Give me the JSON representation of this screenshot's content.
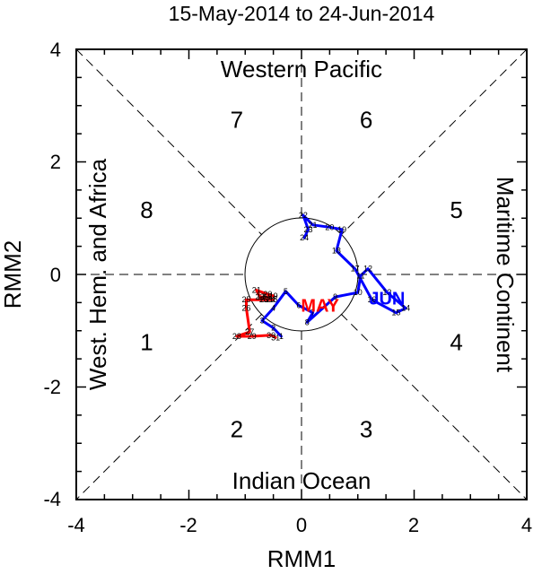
{
  "chart_data": {
    "type": "line",
    "title": "15-May-2014 to 24-Jun-2014",
    "xlabel": "RMM1",
    "ylabel": "RMM2",
    "xlim": [
      -4,
      4
    ],
    "ylim": [
      -4,
      4
    ],
    "xticks": [
      "-4",
      "-2",
      "0",
      "2",
      "4"
    ],
    "yticks": [
      "-4",
      "-2",
      "0",
      "2",
      "4"
    ],
    "regions": {
      "top": "Western Pacific",
      "bottom": "Indian Ocean",
      "left": "West. Hem. and Africa",
      "right": "Maritime Continent"
    },
    "phases": [
      {
        "label": "1",
        "x": -2.75,
        "y": -1.2
      },
      {
        "label": "2",
        "x": -1.15,
        "y": -2.75
      },
      {
        "label": "3",
        "x": 1.15,
        "y": -2.75
      },
      {
        "label": "4",
        "x": 2.75,
        "y": -1.2
      },
      {
        "label": "5",
        "x": 2.75,
        "y": 1.15
      },
      {
        "label": "6",
        "x": 1.15,
        "y": 2.75
      },
      {
        "label": "7",
        "x": -1.15,
        "y": 2.75
      },
      {
        "label": "8",
        "x": -2.75,
        "y": 1.15
      }
    ],
    "unit_circle_radius": 1,
    "series": [
      {
        "name": "MAY",
        "color": "#ff0000",
        "points": [
          {
            "day": "15",
            "x": -0.5,
            "y": -0.45
          },
          {
            "day": "16",
            "x": -0.68,
            "y": -0.45
          },
          {
            "day": "17",
            "x": -0.72,
            "y": -0.4
          },
          {
            "day": "18",
            "x": -0.6,
            "y": -0.4
          },
          {
            "day": "19",
            "x": -0.5,
            "y": -0.38
          },
          {
            "day": "20",
            "x": -0.6,
            "y": -0.35
          },
          {
            "day": "21",
            "x": -0.8,
            "y": -0.28
          },
          {
            "day": "22",
            "x": -0.74,
            "y": -0.4
          },
          {
            "day": "23",
            "x": -0.66,
            "y": -0.45
          },
          {
            "day": "24",
            "x": -0.55,
            "y": -0.45
          },
          {
            "day": "25",
            "x": -0.98,
            "y": -0.45
          },
          {
            "day": "26",
            "x": -0.98,
            "y": -0.6
          },
          {
            "day": "27",
            "x": -0.92,
            "y": -1.02
          },
          {
            "day": "28",
            "x": -1.15,
            "y": -1.1
          },
          {
            "day": "29",
            "x": -0.88,
            "y": -1.1
          },
          {
            "day": "30",
            "x": -0.54,
            "y": -1.08
          },
          {
            "day": "31",
            "x": -0.46,
            "y": -1.12
          }
        ]
      },
      {
        "name": "JUN",
        "color": "#0000ff",
        "points": [
          {
            "day": "1",
            "x": -0.36,
            "y": -1.1
          },
          {
            "day": "2",
            "x": -0.5,
            "y": -0.95
          },
          {
            "day": "3",
            "x": -0.7,
            "y": -0.82
          },
          {
            "day": "4",
            "x": -0.5,
            "y": -0.6
          },
          {
            "day": "5",
            "x": -0.28,
            "y": -0.3
          },
          {
            "day": "6",
            "x": -0.05,
            "y": -0.55
          },
          {
            "day": "7",
            "x": 0.2,
            "y": -0.68
          },
          {
            "day": "8",
            "x": 0.1,
            "y": -0.85
          },
          {
            "day": "9",
            "x": 0.6,
            "y": -0.4
          },
          {
            "day": "10",
            "x": 1.0,
            "y": -0.32
          },
          {
            "day": "11",
            "x": 1.05,
            "y": -0.02
          },
          {
            "day": "12",
            "x": 1.18,
            "y": 0.1
          },
          {
            "day": "13",
            "x": 1.52,
            "y": -0.32
          },
          {
            "day": "14",
            "x": 1.85,
            "y": -0.6
          },
          {
            "day": "15",
            "x": 1.68,
            "y": -0.68
          },
          {
            "day": "16",
            "x": 1.25,
            "y": -0.45
          },
          {
            "day": "17",
            "x": 0.95,
            "y": 0.1
          },
          {
            "day": "18",
            "x": 0.62,
            "y": 0.42
          },
          {
            "day": "19",
            "x": 0.72,
            "y": 0.8
          },
          {
            "day": "20",
            "x": 0.5,
            "y": 0.84
          },
          {
            "day": "21",
            "x": 0.2,
            "y": 0.88
          },
          {
            "day": "22",
            "x": 0.03,
            "y": 1.05
          },
          {
            "day": "23",
            "x": 0.12,
            "y": 0.8
          },
          {
            "day": "24",
            "x": 0.05,
            "y": 0.65
          }
        ]
      }
    ],
    "month_labels": [
      {
        "text": "MAY",
        "color": "#ff0000",
        "x": 0.33,
        "y": -0.55
      },
      {
        "text": "JUN",
        "color": "#0000ff",
        "x": 1.52,
        "y": -0.42
      }
    ]
  }
}
